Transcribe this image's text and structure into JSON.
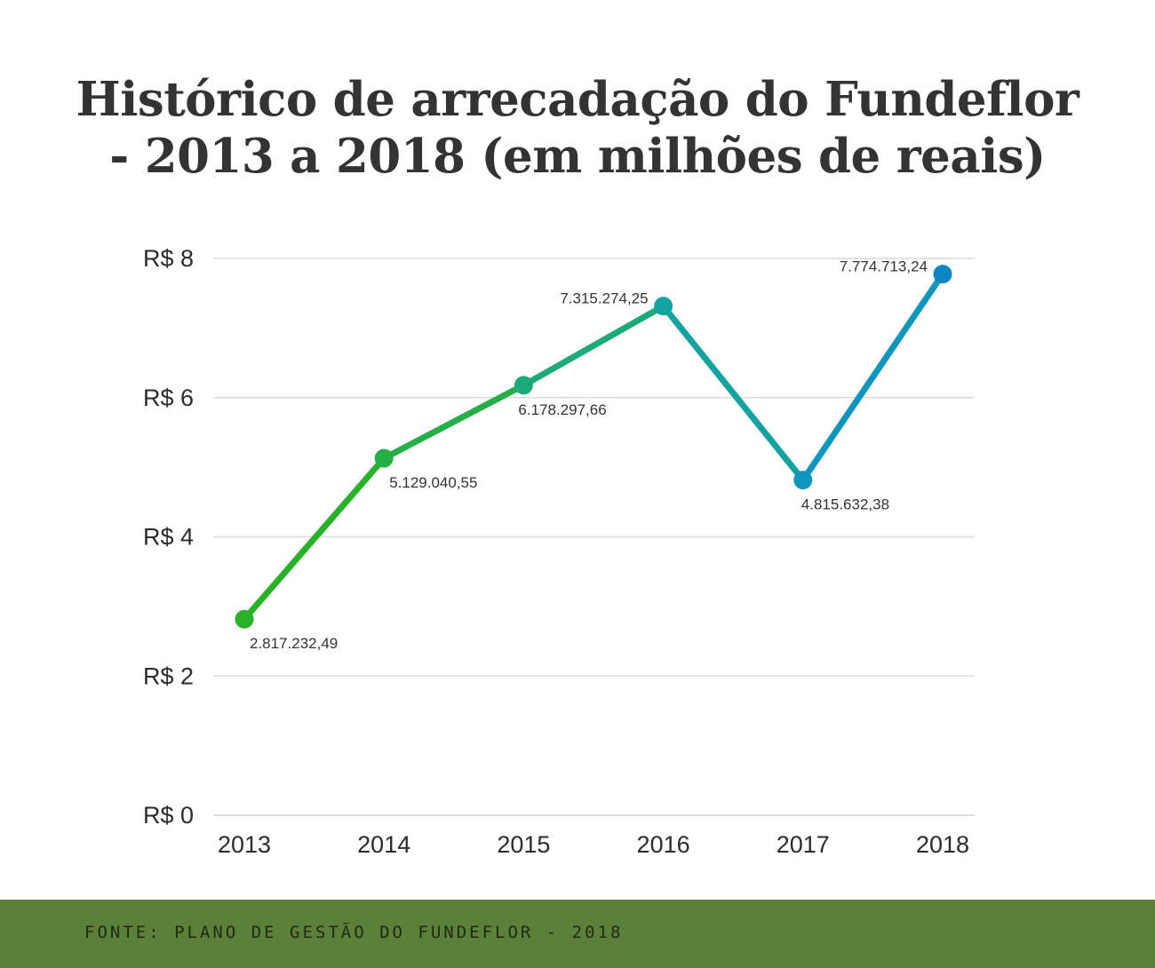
{
  "title": {
    "line1": "Histórico de arrecadação do Fundeflor",
    "line2": "- 2013 a 2018 (em milhões de reais)"
  },
  "footer": {
    "source": "FONTE: PLANO DE GESTÃO DO FUNDEFLOR - 2018"
  },
  "chart_data": {
    "type": "line",
    "title": "Histórico de arrecadação do Fundeflor - 2013 a 2018 (em milhões de reais)",
    "categories": [
      "2013",
      "2014",
      "2015",
      "2016",
      "2017",
      "2018"
    ],
    "series": [
      {
        "values": [
          2.81723249,
          5.12904055,
          6.17829766,
          7.31527425,
          4.81563238,
          7.77471324
        ],
        "labels": [
          "2.817.232,49",
          "5.129.040,55",
          "6.178.297,66",
          "7.315.274,25",
          "4.815.632,38",
          "7.774.713,24"
        ],
        "point_colors": [
          "#2ab12a",
          "#26ae47",
          "#1daa7a",
          "#14a39e",
          "#0f96bd",
          "#0b85c4"
        ]
      }
    ],
    "y_ticks": [
      "R$ 0",
      "R$ 2",
      "R$ 4",
      "R$ 6",
      "R$ 8"
    ],
    "ylim": [
      0,
      8
    ],
    "grid": true,
    "legend": "none"
  }
}
